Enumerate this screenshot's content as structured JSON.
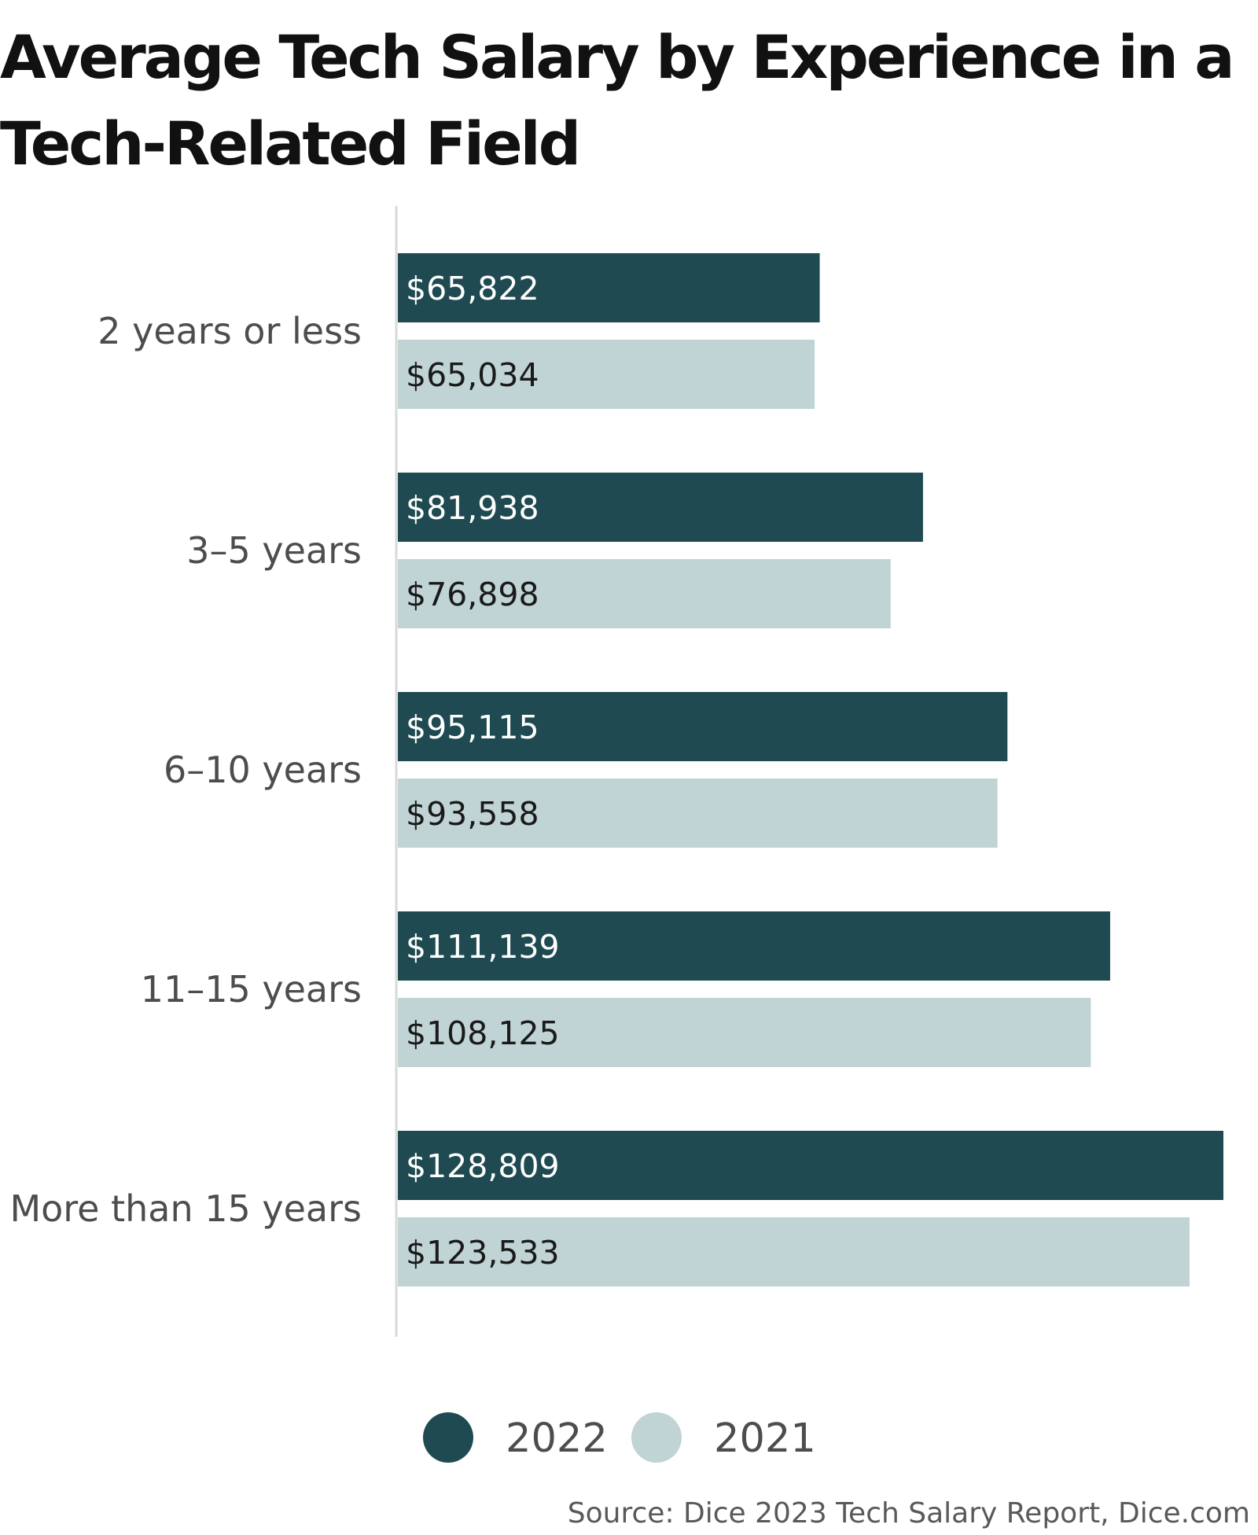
{
  "chart_data": {
    "type": "bar",
    "orientation": "horizontal",
    "title": "Average Tech Salary by Experience in a Tech-Related Field",
    "categories": [
      "2 years or less",
      "3–5 years",
      "6–10 years",
      "11–15 years",
      "More than 15 years"
    ],
    "series": [
      {
        "name": "2022",
        "color": "#1f4a51",
        "values": [
          65822,
          81938,
          95115,
          111139,
          128809
        ],
        "labels": [
          "$65,822",
          "$81,938",
          "$95,115",
          "$111,139",
          "$128,809"
        ]
      },
      {
        "name": "2021",
        "color": "#c0d4d5",
        "values": [
          65034,
          76898,
          93558,
          108125,
          123533
        ],
        "labels": [
          "$65,034",
          "$76,898",
          "$93,558",
          "$108,125",
          "$123,533"
        ]
      }
    ],
    "xlim": [
      0,
      128809
    ],
    "grid": false,
    "legend_position": "bottom-center",
    "source": "Source: Dice 2023 Tech Salary Report, Dice.com"
  }
}
